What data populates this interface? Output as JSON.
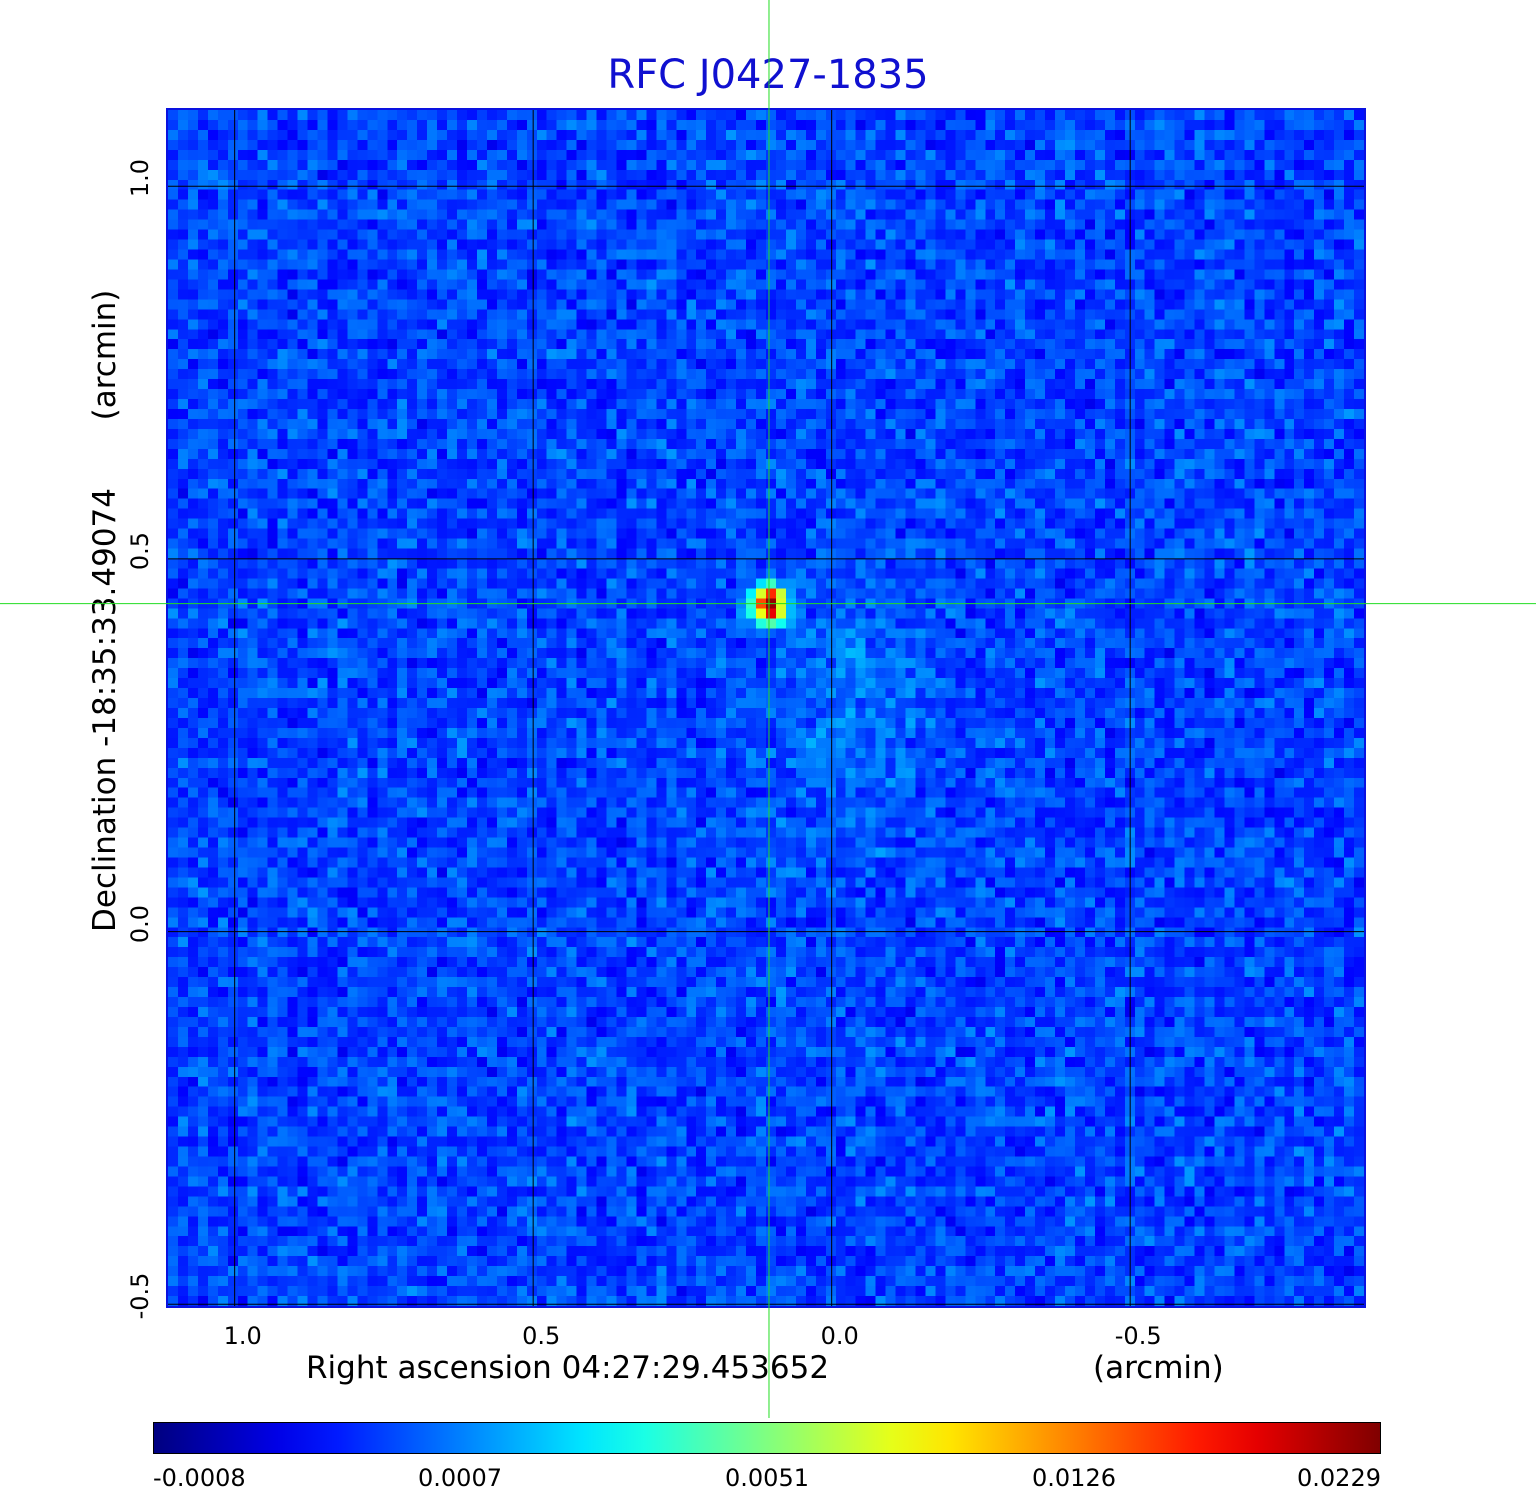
{
  "chart_data": {
    "type": "heatmap",
    "title": "RFC J0427-1835",
    "xlabel": "Right ascension  04:27:29.453652",
    "xunit": "(arcmin)",
    "ylabel": "Declination  -18:35:33.49074",
    "yunit": "(arcmin)",
    "x_ticks": [
      {
        "label": "1.0",
        "value": 1.0
      },
      {
        "label": "0.5",
        "value": 0.5
      },
      {
        "label": "0.0",
        "value": 0.0
      },
      {
        "label": "-0.5",
        "value": -0.5
      }
    ],
    "y_ticks": [
      {
        "label": "1.0",
        "value": 1.0
      },
      {
        "label": "0.5",
        "value": 0.5
      },
      {
        "label": "0.0",
        "value": 0.0
      },
      {
        "label": "-0.5",
        "value": -0.5
      }
    ],
    "xlim": [
      1.115,
      -0.895
    ],
    "ylim": [
      -0.505,
      1.105
    ],
    "grid": true,
    "source_peak": {
      "x": 0.105,
      "y": 0.44,
      "value": 0.0229
    },
    "colorbar": {
      "colormap": "jet",
      "ticks": [
        "-0.0008",
        "0.0007",
        "0.0051",
        "0.0126",
        "0.0229"
      ],
      "min": -0.0008,
      "max": 0.0229
    },
    "colors": {
      "title": "#1010d0",
      "frame": "#0a12e0",
      "grid": "#000000",
      "crosshair": "#22dd22",
      "background_level": "#1f55ee"
    }
  }
}
